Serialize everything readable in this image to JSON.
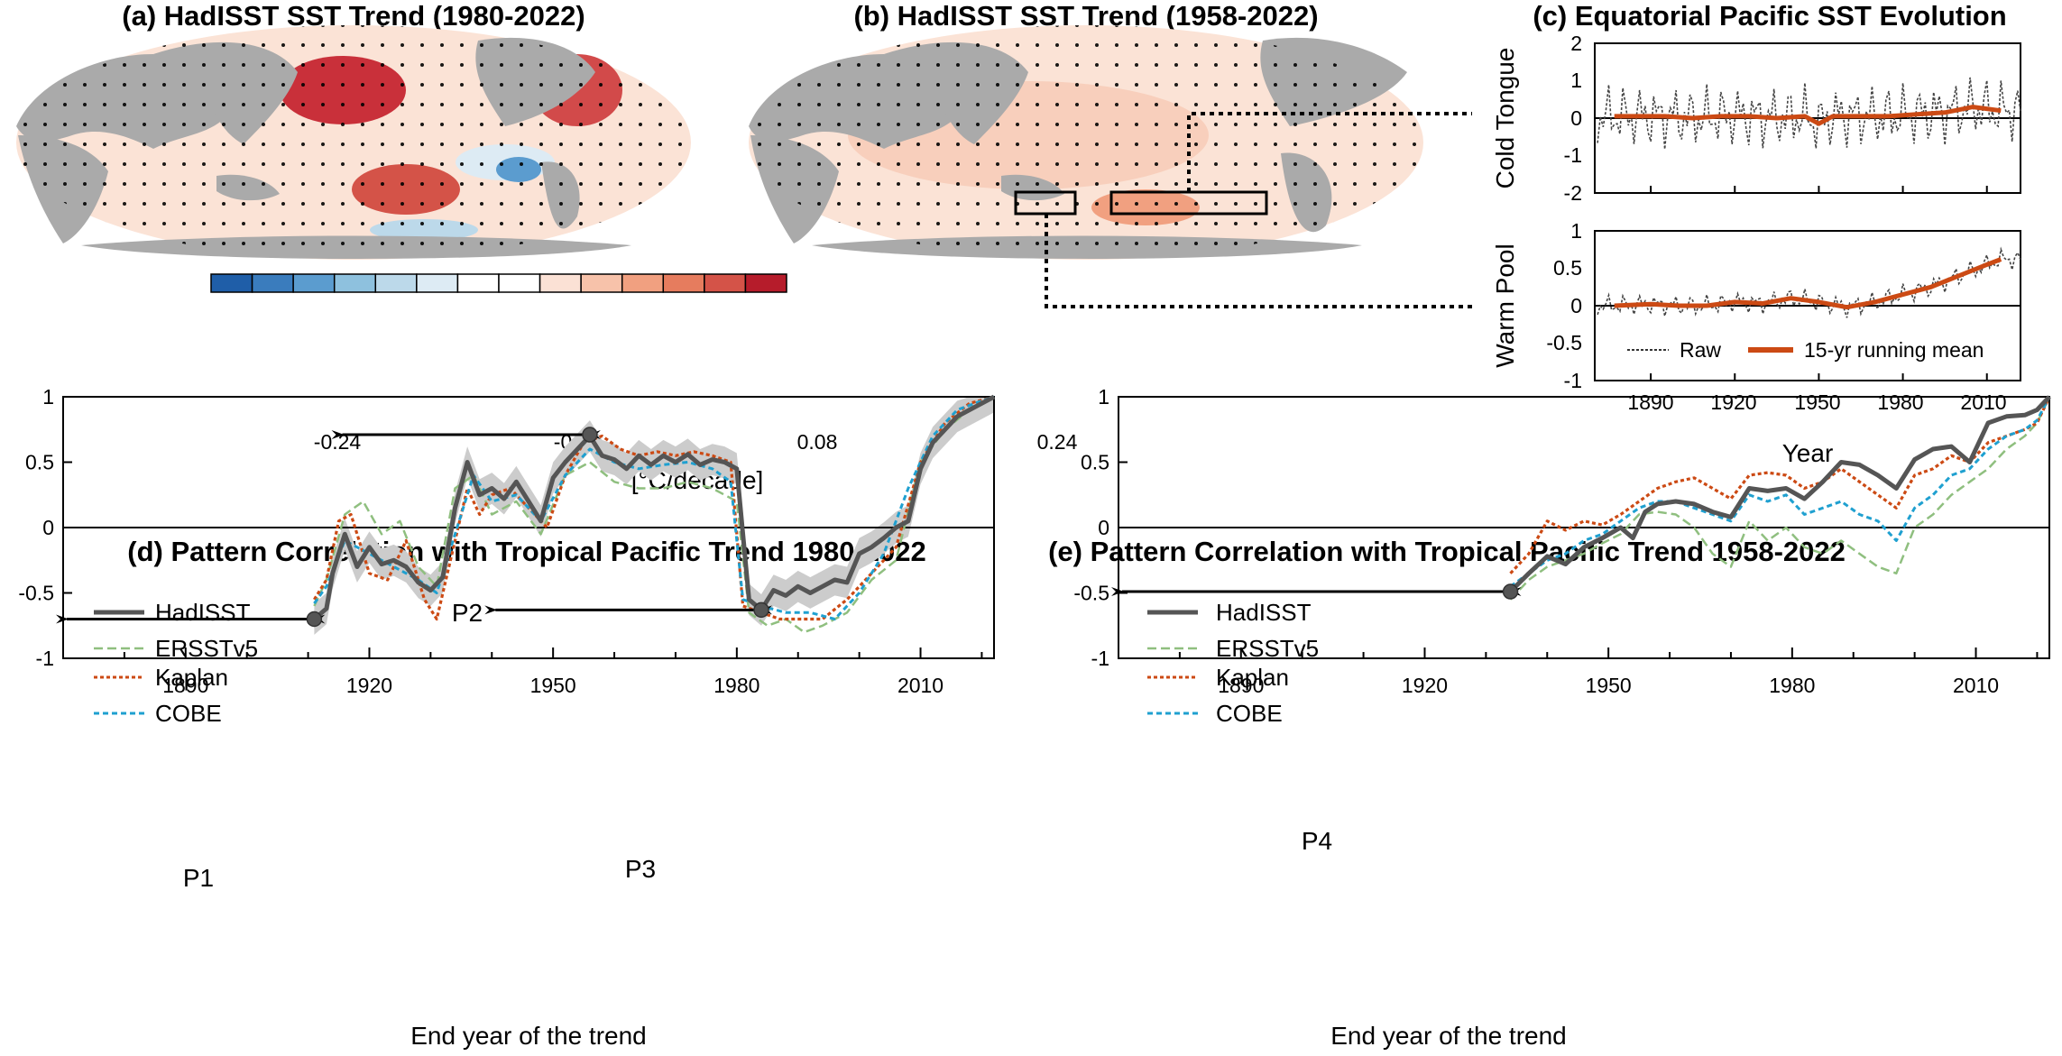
{
  "panels": {
    "a": {
      "title": "(a) HadISST SST Trend (1980-2022)"
    },
    "b": {
      "title": "(b) HadISST SST Trend (1958-2022)"
    },
    "c": {
      "title": "(c) Equatorial Pacific SST Evolution",
      "top_ylabel": "Cold Tongue",
      "bottom_ylabel": "Warm Pool",
      "xlabel": "Year",
      "top_yticks": [
        "2",
        "1",
        "0",
        "-1",
        "-2"
      ],
      "bottom_yticks": [
        "1",
        "0.5",
        "0",
        "-0.5",
        "-1"
      ],
      "xticks": [
        "1890",
        "1920",
        "1950",
        "1980",
        "2010"
      ],
      "legend_raw": "Raw",
      "legend_mean": "15-yr running mean"
    },
    "d": {
      "title": "(d) Pattern Correlation with Tropical Pacific Trend 1980-2022",
      "xlabel": "End year of the trend",
      "labels": {
        "P1": "P1",
        "P2": "P2",
        "P3": "P3"
      }
    },
    "e": {
      "title": "(e) Pattern Correlation with Tropical Pacific Trend 1958-2022",
      "xlabel": "End year of the trend",
      "labels": {
        "P4": "P4"
      }
    }
  },
  "colorbar": {
    "unit": "[°C/decade]",
    "tick_labels": [
      "-0.24",
      "-0.08",
      "0.08",
      "0.24"
    ],
    "colors": [
      "#1f5ea8",
      "#3a7cbd",
      "#5b9ccf",
      "#8ec1de",
      "#bcd9ea",
      "#ddebf4",
      "#ffffff",
      "#ffffff",
      "#fbe1d5",
      "#f7c2aa",
      "#f1a080",
      "#e67c5e",
      "#d45348",
      "#b61c2b"
    ]
  },
  "legend": {
    "series": [
      "HadISST",
      "ERSSTv5",
      "Kaplan",
      "COBE"
    ],
    "colors": {
      "HadISST": "#555555",
      "ERSSTv5": "#8fbf7f",
      "Kaplan": "#cc4a14",
      "COBE": "#1fa0d0"
    }
  },
  "chart_data": [
    {
      "type": "line",
      "title": "(c) Equatorial Pacific SST Evolution — Cold Tongue",
      "xlabel": "Year",
      "ylabel": "Cold Tongue",
      "xlim": [
        1870,
        2022
      ],
      "ylim": [
        -2,
        2
      ],
      "series": [
        {
          "name": "15-yr running mean",
          "x": [
            1877,
            1885,
            1895,
            1905,
            1915,
            1925,
            1935,
            1945,
            1950,
            1955,
            1965,
            1975,
            1985,
            1995,
            2005,
            2015
          ],
          "values": [
            0.05,
            0.05,
            0.05,
            0.0,
            0.05,
            0.05,
            0.0,
            0.05,
            -0.15,
            0.05,
            0.05,
            0.05,
            0.1,
            0.15,
            0.3,
            0.2
          ]
        }
      ]
    },
    {
      "type": "line",
      "title": "(c) Equatorial Pacific SST Evolution — Warm Pool",
      "xlabel": "Year",
      "ylabel": "Warm Pool",
      "xlim": [
        1870,
        2022
      ],
      "ylim": [
        -1,
        1
      ],
      "series": [
        {
          "name": "15-yr running mean",
          "x": [
            1877,
            1890,
            1900,
            1910,
            1920,
            1930,
            1940,
            1950,
            1960,
            1970,
            1980,
            1990,
            2000,
            2010,
            2015
          ],
          "values": [
            0.0,
            0.02,
            0.0,
            0.0,
            0.05,
            0.03,
            0.1,
            0.05,
            -0.02,
            0.05,
            0.15,
            0.25,
            0.4,
            0.55,
            0.62
          ]
        }
      ]
    },
    {
      "type": "line",
      "title": "(d) Pattern Correlation with Tropical Pacific Trend 1980-2022",
      "xlabel": "End year of the trend",
      "ylabel": "",
      "xlim": [
        1870,
        2022
      ],
      "ylim": [
        -1,
        1
      ],
      "xticks": [
        1890,
        1920,
        1950,
        1980,
        2010
      ],
      "yticks": [
        -1,
        -0.5,
        0,
        0.5,
        1
      ],
      "ytick_labels": [
        "-1",
        "-0.5",
        "0",
        "0.5",
        "1"
      ],
      "series": [
        {
          "name": "HadISST",
          "x": [
            1911,
            1913,
            1914,
            1916,
            1918,
            1920,
            1922,
            1924,
            1926,
            1928,
            1930,
            1932,
            1934,
            1936,
            1938,
            1940,
            1942,
            1944,
            1946,
            1948,
            1950,
            1952,
            1954,
            1956,
            1958,
            1960,
            1962,
            1964,
            1966,
            1968,
            1970,
            1972,
            1974,
            1976,
            1978,
            1980,
            1982,
            1984,
            1986,
            1988,
            1990,
            1992,
            1994,
            1996,
            1998,
            2000,
            2002,
            2004,
            2006,
            2008,
            2010,
            2012,
            2014,
            2016,
            2018,
            2020,
            2022
          ],
          "values": [
            -0.7,
            -0.62,
            -0.35,
            -0.05,
            -0.3,
            -0.15,
            -0.28,
            -0.25,
            -0.3,
            -0.42,
            -0.48,
            -0.38,
            0.15,
            0.5,
            0.25,
            0.3,
            0.22,
            0.35,
            0.2,
            0.05,
            0.38,
            0.5,
            0.6,
            0.7,
            0.55,
            0.52,
            0.45,
            0.55,
            0.48,
            0.55,
            0.5,
            0.56,
            0.48,
            0.52,
            0.5,
            0.45,
            -0.55,
            -0.63,
            -0.48,
            -0.52,
            -0.45,
            -0.5,
            -0.45,
            -0.4,
            -0.42,
            -0.2,
            -0.15,
            -0.08,
            0.0,
            0.05,
            0.45,
            0.65,
            0.75,
            0.85,
            0.9,
            0.95,
            1.0
          ]
        },
        {
          "name": "ERSSTv5",
          "x": [
            1911,
            1913,
            1916,
            1919,
            1922,
            1925,
            1928,
            1931,
            1934,
            1937,
            1940,
            1944,
            1948,
            1952,
            1956,
            1960,
            1964,
            1968,
            1972,
            1976,
            1980,
            1982,
            1985,
            1988,
            1991,
            1994,
            1998,
            2002,
            2006,
            2010,
            2014,
            2018,
            2022
          ],
          "values": [
            -0.6,
            -0.4,
            0.1,
            0.2,
            -0.05,
            0.05,
            -0.3,
            -0.45,
            0.3,
            0.4,
            0.1,
            0.2,
            -0.05,
            0.4,
            0.5,
            0.35,
            0.3,
            0.3,
            0.35,
            0.3,
            0.2,
            -0.65,
            -0.75,
            -0.7,
            -0.8,
            -0.75,
            -0.65,
            -0.4,
            -0.25,
            0.5,
            0.75,
            0.9,
            1.0
          ]
        },
        {
          "name": "Kaplan",
          "x": [
            1911,
            1913,
            1915,
            1917,
            1920,
            1923,
            1926,
            1929,
            1931,
            1933,
            1936,
            1938,
            1940,
            1943,
            1946,
            1949,
            1952,
            1955,
            1958,
            1961,
            1964,
            1967,
            1970,
            1973,
            1976,
            1979,
            1981,
            1984,
            1987,
            1990,
            1994,
            1998,
            2002,
            2006,
            2010,
            2014,
            2018,
            2022
          ],
          "values": [
            -0.55,
            -0.4,
            0.05,
            0.1,
            -0.35,
            -0.4,
            -0.1,
            -0.55,
            -0.7,
            -0.3,
            0.3,
            0.1,
            0.25,
            0.3,
            0.15,
            0.0,
            0.4,
            0.65,
            0.7,
            0.6,
            0.55,
            0.58,
            0.55,
            0.58,
            0.55,
            0.5,
            -0.6,
            -0.65,
            -0.7,
            -0.7,
            -0.7,
            -0.55,
            -0.35,
            -0.15,
            0.5,
            0.8,
            0.95,
            1.0
          ]
        },
        {
          "name": "COBE",
          "x": [
            1911,
            1913,
            1916,
            1920,
            1924,
            1928,
            1931,
            1934,
            1937,
            1940,
            1944,
            1948,
            1952,
            1956,
            1960,
            1964,
            1968,
            1972,
            1976,
            1979,
            1981,
            1984,
            1988,
            1992,
            1996,
            2000,
            2004,
            2008,
            2012,
            2016,
            2020,
            2022
          ],
          "values": [
            -0.58,
            -0.45,
            -0.1,
            -0.2,
            -0.3,
            -0.4,
            -0.5,
            -0.05,
            0.4,
            0.2,
            0.25,
            0.05,
            0.4,
            0.6,
            0.5,
            0.45,
            0.48,
            0.5,
            0.45,
            0.35,
            -0.55,
            -0.6,
            -0.65,
            -0.65,
            -0.7,
            -0.5,
            -0.2,
            0.3,
            0.7,
            0.9,
            0.97,
            1.0
          ]
        }
      ],
      "annotations": [
        {
          "label": "P1",
          "from": 1870,
          "to": 1911,
          "y": -0.7
        },
        {
          "label": "P2",
          "from": 1915,
          "to": 1956,
          "y": 0.71
        },
        {
          "label": "P3",
          "from": 1940,
          "to": 1984,
          "y": -0.63
        }
      ]
    },
    {
      "type": "line",
      "title": "(e) Pattern Correlation with Tropical Pacific Trend 1958-2022",
      "xlabel": "End year of the trend",
      "ylabel": "",
      "xlim": [
        1870,
        2022
      ],
      "ylim": [
        -1,
        1
      ],
      "xticks": [
        1890,
        1920,
        1950,
        1980,
        2010
      ],
      "yticks": [
        -1,
        -0.5,
        0,
        0.5,
        1
      ],
      "ytick_labels": [
        "-1",
        "-0.5",
        "0",
        "0.5",
        "1"
      ],
      "series": [
        {
          "name": "HadISST",
          "x": [
            1934,
            1937,
            1940,
            1943,
            1946,
            1949,
            1952,
            1954,
            1956,
            1958,
            1961,
            1964,
            1967,
            1970,
            1973,
            1976,
            1979,
            1982,
            1985,
            1988,
            1991,
            1994,
            1997,
            2000,
            2003,
            2006,
            2009,
            2012,
            2015,
            2018,
            2020,
            2022
          ],
          "values": [
            -0.49,
            -0.35,
            -0.22,
            -0.28,
            -0.15,
            -0.08,
            0.0,
            -0.08,
            0.12,
            0.18,
            0.2,
            0.18,
            0.12,
            0.08,
            0.3,
            0.28,
            0.3,
            0.22,
            0.35,
            0.5,
            0.48,
            0.4,
            0.3,
            0.52,
            0.6,
            0.62,
            0.5,
            0.8,
            0.85,
            0.86,
            0.9,
            1.0
          ]
        },
        {
          "name": "ERSSTv5",
          "x": [
            1934,
            1937,
            1940,
            1943,
            1946,
            1949,
            1952,
            1955,
            1958,
            1961,
            1964,
            1967,
            1970,
            1973,
            1976,
            1979,
            1982,
            1985,
            1988,
            1991,
            1994,
            1997,
            2000,
            2003,
            2006,
            2009,
            2012,
            2015,
            2018,
            2020,
            2022
          ],
          "values": [
            -0.55,
            -0.4,
            -0.3,
            -0.25,
            -0.2,
            -0.12,
            -0.05,
            0.1,
            0.12,
            0.1,
            0.0,
            -0.2,
            -0.3,
            0.05,
            -0.1,
            0.0,
            -0.15,
            -0.2,
            -0.1,
            -0.2,
            -0.3,
            -0.35,
            0.0,
            0.1,
            0.25,
            0.35,
            0.45,
            0.6,
            0.7,
            0.8,
            1.0
          ]
        },
        {
          "name": "Kaplan",
          "x": [
            1934,
            1937,
            1940,
            1943,
            1946,
            1949,
            1952,
            1955,
            1958,
            1961,
            1964,
            1967,
            1970,
            1973,
            1976,
            1979,
            1982,
            1985,
            1988,
            1991,
            1994,
            1997,
            2000,
            2003,
            2006,
            2009,
            2012,
            2015,
            2018,
            2020,
            2022
          ],
          "values": [
            -0.35,
            -0.2,
            0.05,
            -0.02,
            0.05,
            0.02,
            0.1,
            0.2,
            0.3,
            0.35,
            0.38,
            0.3,
            0.22,
            0.4,
            0.42,
            0.4,
            0.3,
            0.35,
            0.45,
            0.35,
            0.25,
            0.15,
            0.4,
            0.45,
            0.55,
            0.5,
            0.65,
            0.7,
            0.75,
            0.8,
            1.0
          ]
        },
        {
          "name": "COBE",
          "x": [
            1934,
            1937,
            1940,
            1943,
            1946,
            1949,
            1952,
            1955,
            1958,
            1961,
            1964,
            1967,
            1970,
            1973,
            1976,
            1979,
            1982,
            1985,
            1988,
            1991,
            1994,
            1997,
            2000,
            2003,
            2006,
            2009,
            2012,
            2015,
            2018,
            2020,
            2022
          ],
          "values": [
            -0.45,
            -0.35,
            -0.25,
            -0.2,
            -0.1,
            -0.05,
            0.05,
            0.15,
            0.2,
            0.2,
            0.15,
            0.1,
            0.05,
            0.25,
            0.2,
            0.25,
            0.1,
            0.15,
            0.2,
            0.1,
            0.05,
            -0.1,
            0.15,
            0.25,
            0.4,
            0.45,
            0.6,
            0.7,
            0.75,
            0.82,
            1.0
          ]
        }
      ],
      "annotations": [
        {
          "label": "P4",
          "from": 1870,
          "to": 1934,
          "y": -0.49
        }
      ]
    }
  ]
}
